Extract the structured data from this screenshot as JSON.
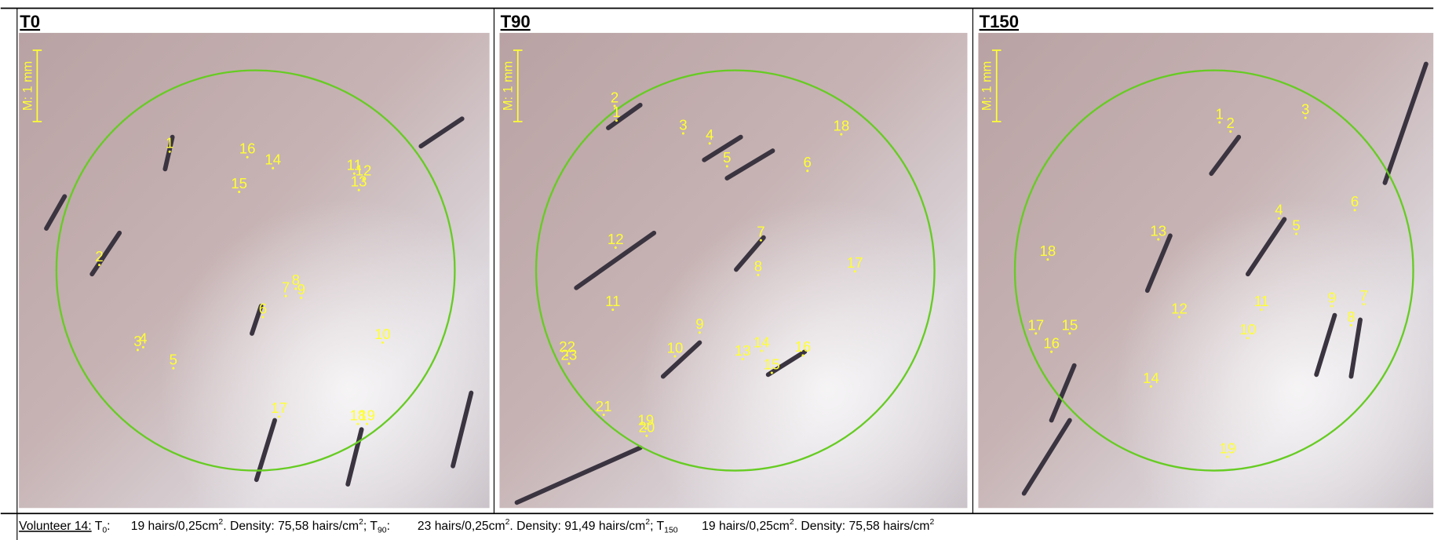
{
  "panels": [
    {
      "title": "T0",
      "scale_label": "M: 1 mm",
      "markers": [
        "1",
        "16",
        "14",
        "11",
        "12",
        "13",
        "15",
        "2",
        "8",
        "7",
        "9",
        "6",
        "3",
        "4",
        "5",
        "10",
        "17",
        "18",
        "19"
      ]
    },
    {
      "title": "T90",
      "scale_label": "M: 1 mm",
      "markers": [
        "2",
        "1",
        "3",
        "4",
        "18",
        "5",
        "6",
        "12",
        "7",
        "8",
        "17",
        "11",
        "9",
        "10",
        "13",
        "14",
        "16",
        "15",
        "22",
        "23",
        "21",
        "19",
        "20"
      ]
    },
    {
      "title": "T150",
      "scale_label": "M: 1 mm",
      "markers": [
        "1",
        "2",
        "3",
        "6",
        "4",
        "5",
        "13",
        "18",
        "12",
        "11",
        "9",
        "7",
        "8",
        "10",
        "17",
        "15",
        "16",
        "14",
        "19"
      ]
    }
  ],
  "caption": [
    {
      "text": "Volunteer 14:",
      "style": "underline"
    },
    {
      "text": " T",
      "style": "normal"
    },
    {
      "text": "0",
      "style": "sub"
    },
    {
      "text": ":      19 hairs/0,25cm",
      "style": "normal"
    },
    {
      "text": "2",
      "style": "sup"
    },
    {
      "text": ". Density: 75,58 hairs/cm",
      "style": "normal"
    },
    {
      "text": "2",
      "style": "sup"
    },
    {
      "text": "; T",
      "style": "normal"
    },
    {
      "text": "90",
      "style": "sub"
    },
    {
      "text": ":        23 hairs/0,25cm",
      "style": "normal"
    },
    {
      "text": "2",
      "style": "sup"
    },
    {
      "text": ". Density: 91,49 hairs/cm",
      "style": "normal"
    },
    {
      "text": "2",
      "style": "sup"
    },
    {
      "text": "; T",
      "style": "normal"
    },
    {
      "text": "150",
      "style": "sub"
    },
    {
      "text": "       19 hairs/0,25cm",
      "style": "normal"
    },
    {
      "text": "2",
      "style": "sup"
    },
    {
      "text": ". Density: 75,58 hairs/cm",
      "style": "normal"
    },
    {
      "text": "2",
      "style": "sup"
    }
  ]
}
